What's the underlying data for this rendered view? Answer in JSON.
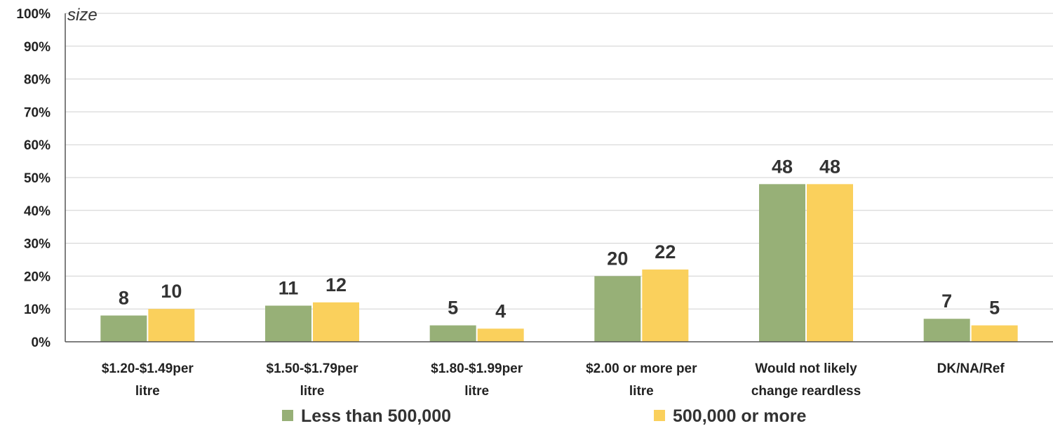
{
  "chart_data": {
    "type": "bar",
    "note_text": "size",
    "categories": [
      [
        "$1.20-$1.49per",
        "litre"
      ],
      [
        "$1.50-$1.79per",
        "litre"
      ],
      [
        "$1.80-$1.99per",
        "litre"
      ],
      [
        "$2.00 or more per",
        "litre"
      ],
      [
        "Would not likely",
        "change reardless"
      ],
      [
        "DK/NA/Ref"
      ]
    ],
    "series": [
      {
        "name": "Less than 500,000",
        "color": "#97b077",
        "values": [
          8,
          11,
          5,
          20,
          48,
          7
        ]
      },
      {
        "name": "500,000 or more",
        "color": "#fad05c",
        "values": [
          10,
          12,
          4,
          22,
          48,
          5
        ]
      }
    ],
    "y_ticks": [
      "0%",
      "10%",
      "20%",
      "30%",
      "40%",
      "50%",
      "60%",
      "70%",
      "80%",
      "90%",
      "100%"
    ],
    "ylim": [
      0,
      100
    ],
    "grid": true,
    "legend_position": "bottom"
  }
}
